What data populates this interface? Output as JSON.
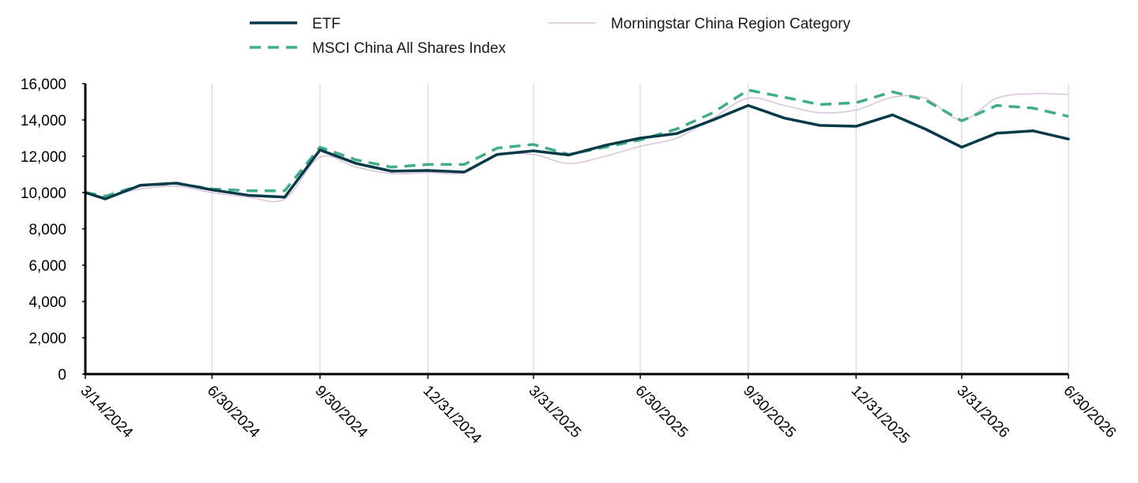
{
  "chart_data": {
    "type": "line",
    "title": "",
    "xlabel": "",
    "ylabel": "",
    "ylim": [
      0,
      16000
    ],
    "y_ticks": [
      0,
      2000,
      4000,
      6000,
      8000,
      10000,
      12000,
      14000,
      16000
    ],
    "y_tick_labels": [
      "0",
      "2,000",
      "4,000",
      "6,000",
      "8,000",
      "10,000",
      "12,000",
      "14,000",
      "16,000"
    ],
    "x_ticks": [
      "3/14/2024",
      "6/30/2024",
      "9/30/2024",
      "12/31/2024",
      "3/31/2025",
      "6/30/2025",
      "9/30/2025",
      "12/31/2025",
      "3/31/2026",
      "6/30/2026"
    ],
    "grid": "vertical",
    "legend_position": "top",
    "series": [
      {
        "name": "ETF",
        "color": "#063a48",
        "style": "solid-thick",
        "points": [
          [
            "2024-03-14",
            10000
          ],
          [
            "2024-03-31",
            9650
          ],
          [
            "2024-04-30",
            10400
          ],
          [
            "2024-05-31",
            10520
          ],
          [
            "2024-06-30",
            10150
          ],
          [
            "2024-07-31",
            9850
          ],
          [
            "2024-08-31",
            9750
          ],
          [
            "2024-09-30",
            12350
          ],
          [
            "2024-10-31",
            11600
          ],
          [
            "2024-11-30",
            11180
          ],
          [
            "2024-12-31",
            11220
          ],
          [
            "2025-01-31",
            11130
          ],
          [
            "2025-02-28",
            12100
          ],
          [
            "2025-03-31",
            12300
          ],
          [
            "2025-04-30",
            12070
          ],
          [
            "2025-05-31",
            12600
          ],
          [
            "2025-06-30",
            13000
          ],
          [
            "2025-07-31",
            13250
          ],
          [
            "2025-08-31",
            14000
          ],
          [
            "2025-09-30",
            14800
          ],
          [
            "2025-10-31",
            14100
          ],
          [
            "2025-11-30",
            13700
          ],
          [
            "2025-12-31",
            13650
          ],
          [
            "2026-01-31",
            14280
          ],
          [
            "2026-02-28",
            13500
          ],
          [
            "2026-03-31",
            12500
          ],
          [
            "2026-04-30",
            13270
          ],
          [
            "2026-05-31",
            13400
          ],
          [
            "2026-06-30",
            12950
          ]
        ]
      },
      {
        "name": "MSCI China All Shares Index",
        "color": "#3fae88",
        "style": "dashed",
        "points": [
          [
            "2024-03-14",
            10000
          ],
          [
            "2024-03-31",
            9800
          ],
          [
            "2024-04-30",
            10400
          ],
          [
            "2024-05-31",
            10500
          ],
          [
            "2024-06-30",
            10200
          ],
          [
            "2024-07-31",
            10100
          ],
          [
            "2024-08-31",
            10100
          ],
          [
            "2024-09-30",
            12500
          ],
          [
            "2024-10-31",
            11800
          ],
          [
            "2024-11-30",
            11400
          ],
          [
            "2024-12-31",
            11550
          ],
          [
            "2025-01-31",
            11550
          ],
          [
            "2025-02-28",
            12450
          ],
          [
            "2025-03-31",
            12650
          ],
          [
            "2025-04-30",
            12100
          ],
          [
            "2025-05-31",
            12500
          ],
          [
            "2025-06-30",
            12900
          ],
          [
            "2025-07-31",
            13500
          ],
          [
            "2025-08-31",
            14400
          ],
          [
            "2025-09-30",
            15650
          ],
          [
            "2025-10-31",
            15250
          ],
          [
            "2025-11-30",
            14850
          ],
          [
            "2025-12-31",
            14950
          ],
          [
            "2026-01-31",
            15550
          ],
          [
            "2026-02-28",
            15100
          ],
          [
            "2026-03-31",
            13950
          ],
          [
            "2026-04-30",
            14800
          ],
          [
            "2026-05-31",
            14650
          ],
          [
            "2026-06-30",
            14200
          ]
        ]
      },
      {
        "name": "Morningstar China Region Category",
        "color": "#dcc4de",
        "style": "solid-thin",
        "points": [
          [
            "2024-03-14",
            10000
          ],
          [
            "2024-03-31",
            9800
          ],
          [
            "2024-04-30",
            10200
          ],
          [
            "2024-05-31",
            10350
          ],
          [
            "2024-06-30",
            10000
          ],
          [
            "2024-07-31",
            9750
          ],
          [
            "2024-08-31",
            9650
          ],
          [
            "2024-09-30",
            11950
          ],
          [
            "2024-10-31",
            11400
          ],
          [
            "2024-11-30",
            11050
          ],
          [
            "2024-12-31",
            11100
          ],
          [
            "2025-01-31",
            11100
          ],
          [
            "2025-02-28",
            12050
          ],
          [
            "2025-03-31",
            12100
          ],
          [
            "2025-04-30",
            11600
          ],
          [
            "2025-05-31",
            12000
          ],
          [
            "2025-06-30",
            12550
          ],
          [
            "2025-07-31",
            13000
          ],
          [
            "2025-08-31",
            14100
          ],
          [
            "2025-09-30",
            15200
          ],
          [
            "2025-10-31",
            14800
          ],
          [
            "2025-11-30",
            14400
          ],
          [
            "2025-12-31",
            14550
          ],
          [
            "2026-01-31",
            15250
          ],
          [
            "2026-02-28",
            15200
          ],
          [
            "2026-03-31",
            14000
          ],
          [
            "2026-04-30",
            15200
          ],
          [
            "2026-05-31",
            15450
          ],
          [
            "2026-06-30",
            15400
          ]
        ]
      }
    ]
  }
}
